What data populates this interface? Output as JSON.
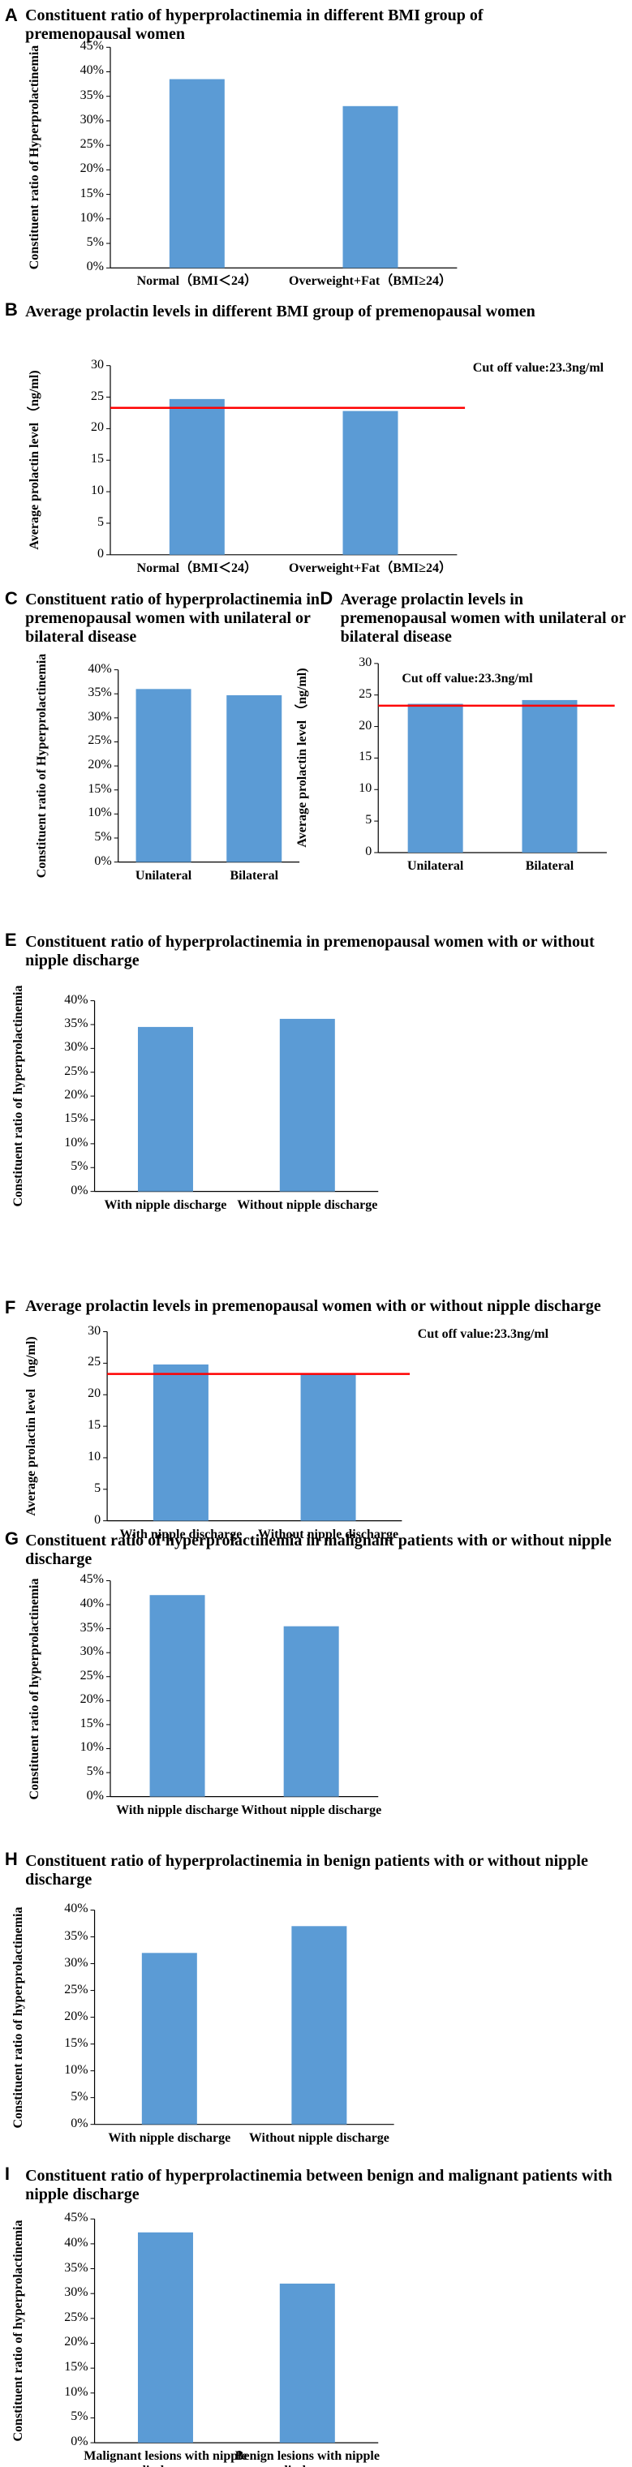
{
  "chart_data": [
    {
      "type": "bar",
      "label": "A",
      "title": "Constituent ratio of hyperprolactinemia in different BMI group of premenopausal women",
      "y_label": "Constituent ratio of Hyperprolactinemia",
      "categories": [
        "Normal（BMI＜24）",
        "Overweight+Fat（BMI≥24）"
      ],
      "values": [
        38.5,
        33
      ],
      "color": "#5b9bd5",
      "ylim": [
        0,
        45
      ],
      "yticks": [
        {
          "value": 0,
          "label": "0%"
        },
        {
          "value": 5,
          "label": "5%"
        },
        {
          "value": 10,
          "label": "10%"
        },
        {
          "value": 15,
          "label": "15%"
        },
        {
          "value": 20,
          "label": "20%"
        },
        {
          "value": 25,
          "label": "25%"
        },
        {
          "value": 30,
          "label": "30%"
        },
        {
          "value": 35,
          "label": "35%"
        },
        {
          "value": 40,
          "label": "40%"
        },
        {
          "value": 45,
          "label": "45%"
        }
      ]
    },
    {
      "type": "bar",
      "label": "B",
      "title": "Average prolactin levels in different BMI group of premenopausal women",
      "y_label": "Average prolactin level （ng/ml)",
      "categories": [
        "Normal（BMI＜24）",
        "Overweight+Fat（BMI≥24）"
      ],
      "values": [
        24.7,
        22.8
      ],
      "color": "#5b9bd5",
      "ylim": [
        0,
        30
      ],
      "yticks": [
        0,
        5,
        10,
        15,
        20,
        25,
        30
      ],
      "cutoff": {
        "value": 23.3,
        "label": "Cut off value:23.3ng/ml",
        "color": "#ff0000"
      }
    },
    {
      "type": "bar",
      "label": "C",
      "title": "Constituent ratio of hyperprolactinemia in premenopausal women with unilateral or bilateral disease",
      "y_label": "Constituent ratio of Hyperprolactinemia",
      "categories": [
        "Unilateral",
        "Bilateral"
      ],
      "values": [
        36,
        34.7
      ],
      "color": "#5b9bd5",
      "ylim": [
        0,
        40
      ],
      "yticks": [
        {
          "value": 0,
          "label": "0%"
        },
        {
          "value": 5,
          "label": "5%"
        },
        {
          "value": 10,
          "label": "10%"
        },
        {
          "value": 15,
          "label": "15%"
        },
        {
          "value": 20,
          "label": "20%"
        },
        {
          "value": 25,
          "label": "25%"
        },
        {
          "value": 30,
          "label": "30%"
        },
        {
          "value": 35,
          "label": "35%"
        },
        {
          "value": 40,
          "label": "40%"
        }
      ]
    },
    {
      "type": "bar",
      "label": "D",
      "title": "Average prolactin levels in premenopausal women with unilateral or bilateral disease",
      "y_label": "Average prolactin level （ng/ml)",
      "categories": [
        "Unilateral",
        "Bilateral"
      ],
      "values": [
        23.6,
        24.2
      ],
      "color": "#5b9bd5",
      "ylim": [
        0,
        30
      ],
      "yticks": [
        0,
        5,
        10,
        15,
        20,
        25,
        30
      ],
      "cutoff": {
        "value": 23.3,
        "label": "Cut off value:23.3ng/ml",
        "color": "#ff0000"
      }
    },
    {
      "type": "bar",
      "label": "E",
      "title": "Constituent ratio of hyperprolactinemia in premenopausal women with or without nipple discharge",
      "y_label": "Constituent ratio of hyperprolactinemia",
      "categories": [
        "With nipple discharge",
        "Without nipple discharge"
      ],
      "values": [
        34.5,
        36.2
      ],
      "color": "#5b9bd5",
      "ylim": [
        0,
        40
      ],
      "yticks": [
        {
          "value": 0,
          "label": "0%"
        },
        {
          "value": 5,
          "label": "5%"
        },
        {
          "value": 10,
          "label": "10%"
        },
        {
          "value": 15,
          "label": "15%"
        },
        {
          "value": 20,
          "label": "20%"
        },
        {
          "value": 25,
          "label": "25%"
        },
        {
          "value": 30,
          "label": "30%"
        },
        {
          "value": 35,
          "label": "35%"
        },
        {
          "value": 40,
          "label": "40%"
        }
      ]
    },
    {
      "type": "bar",
      "label": "F",
      "title": "Average prolactin levels in premenopausal women with  or without nipple discharge",
      "y_label": "Average prolactin level （ng/ml)",
      "categories": [
        "With nipple discharge",
        "Without nipple discharge"
      ],
      "values": [
        24.8,
        23.4
      ],
      "color": "#5b9bd5",
      "ylim": [
        0,
        30
      ],
      "yticks": [
        0,
        5,
        10,
        15,
        20,
        25,
        30
      ],
      "cutoff": {
        "value": 23.3,
        "label": "Cut off value:23.3ng/ml",
        "color": "#ff0000"
      }
    },
    {
      "type": "bar",
      "label": "G",
      "title": "Constituent ratio of hyperprolactinemia in malignant patients with or without nipple discharge",
      "y_label": "Constituent ratio of hyperprolactinemia",
      "categories": [
        "With nipple discharge",
        "Without nipple discharge"
      ],
      "values": [
        42,
        35.5
      ],
      "color": "#5b9bd5",
      "ylim": [
        0,
        45
      ],
      "yticks": [
        {
          "value": 0,
          "label": "0%"
        },
        {
          "value": 5,
          "label": "5%"
        },
        {
          "value": 10,
          "label": "10%"
        },
        {
          "value": 15,
          "label": "15%"
        },
        {
          "value": 20,
          "label": "20%"
        },
        {
          "value": 25,
          "label": "25%"
        },
        {
          "value": 30,
          "label": "30%"
        },
        {
          "value": 35,
          "label": "35%"
        },
        {
          "value": 40,
          "label": "40%"
        },
        {
          "value": 45,
          "label": "45%"
        }
      ]
    },
    {
      "type": "bar",
      "label": "H",
      "title": "Constituent ratio of hyperprolactinemia in benign patients with or without nipple discharge",
      "y_label": "Constituent ratio of hyperprolactinemia",
      "categories": [
        "With nipple discharge",
        "Without nipple discharge"
      ],
      "values": [
        32,
        37
      ],
      "color": "#5b9bd5",
      "ylim": [
        0,
        40
      ],
      "yticks": [
        {
          "value": 0,
          "label": "0%"
        },
        {
          "value": 5,
          "label": "5%"
        },
        {
          "value": 10,
          "label": "10%"
        },
        {
          "value": 15,
          "label": "15%"
        },
        {
          "value": 20,
          "label": "20%"
        },
        {
          "value": 25,
          "label": "25%"
        },
        {
          "value": 30,
          "label": "30%"
        },
        {
          "value": 35,
          "label": "35%"
        },
        {
          "value": 40,
          "label": "40%"
        }
      ]
    },
    {
      "type": "bar",
      "label": "I",
      "title": "Constituent ratio of hyperprolactinemia between benign and malignant patients with nipple discharge",
      "y_label": "Constituent ratio of hyperprolactinemia",
      "categories": [
        "Malignant lesions with nipple discharge",
        "Benign lesions with nipple discharge"
      ],
      "values": [
        42.3,
        32
      ],
      "color": "#5b9bd5",
      "ylim": [
        0,
        45
      ],
      "yticks": [
        {
          "value": 0,
          "label": "0%"
        },
        {
          "value": 5,
          "label": "5%"
        },
        {
          "value": 10,
          "label": "10%"
        },
        {
          "value": 15,
          "label": "15%"
        },
        {
          "value": 20,
          "label": "20%"
        },
        {
          "value": 25,
          "label": "25%"
        },
        {
          "value": 30,
          "label": "30%"
        },
        {
          "value": 35,
          "label": "35%"
        },
        {
          "value": 40,
          "label": "40%"
        },
        {
          "value": 45,
          "label": "45%"
        }
      ]
    }
  ]
}
